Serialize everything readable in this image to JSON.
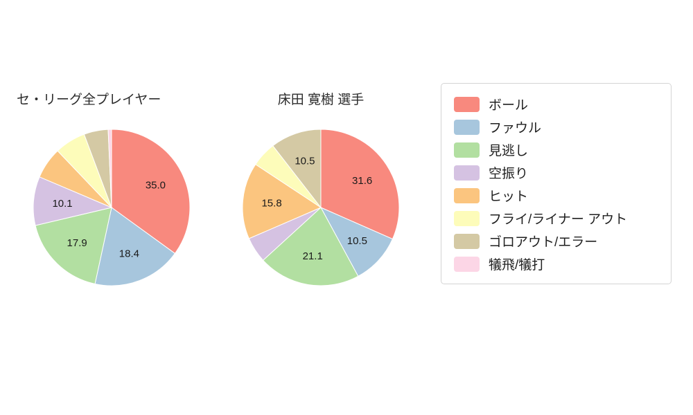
{
  "page": {
    "background": "#ffffff"
  },
  "legend": {
    "items": [
      {
        "label": "ボール",
        "color": "#f8897e"
      },
      {
        "label": "ファウル",
        "color": "#a7c6dd"
      },
      {
        "label": "見逃し",
        "color": "#b2dfa1"
      },
      {
        "label": "空振り",
        "color": "#d5c2e2"
      },
      {
        "label": "ヒット",
        "color": "#fbc57f"
      },
      {
        "label": "フライ/ライナー アウト",
        "color": "#fdfcba"
      },
      {
        "label": "ゴロアウト/エラー",
        "color": "#d4c9a4"
      },
      {
        "label": "犠飛/犠打",
        "color": "#fcd6e6"
      }
    ]
  },
  "chart_data": [
    {
      "type": "pie",
      "title": "セ・リーグ全プレイヤー",
      "categories": [
        "ボール",
        "ファウル",
        "見逃し",
        "空振り",
        "ヒット",
        "フライ/ライナー アウト",
        "ゴロアウト/エラー",
        "犠飛/犠打"
      ],
      "values": [
        35.0,
        18.4,
        17.9,
        10.1,
        6.5,
        6.4,
        5.0,
        0.7
      ],
      "shown_labels": [
        "35.0",
        "18.4",
        "17.9",
        "10.1",
        "",
        "",
        "",
        ""
      ],
      "start_angle": "top",
      "direction": "clockwise",
      "legend_position": "right"
    },
    {
      "type": "pie",
      "title": "床田 寛樹 選手",
      "categories": [
        "ボール",
        "ファウル",
        "見逃し",
        "空振り",
        "ヒット",
        "フライ/ライナー アウト",
        "ゴロアウト/エラー",
        "犠飛/犠打"
      ],
      "values": [
        31.6,
        10.5,
        21.1,
        5.3,
        15.8,
        5.2,
        10.5,
        0
      ],
      "shown_labels": [
        "31.6",
        "10.5",
        "21.1",
        "",
        "15.8",
        "",
        "10.5",
        ""
      ],
      "start_angle": "top",
      "direction": "clockwise",
      "legend_position": "right"
    }
  ]
}
